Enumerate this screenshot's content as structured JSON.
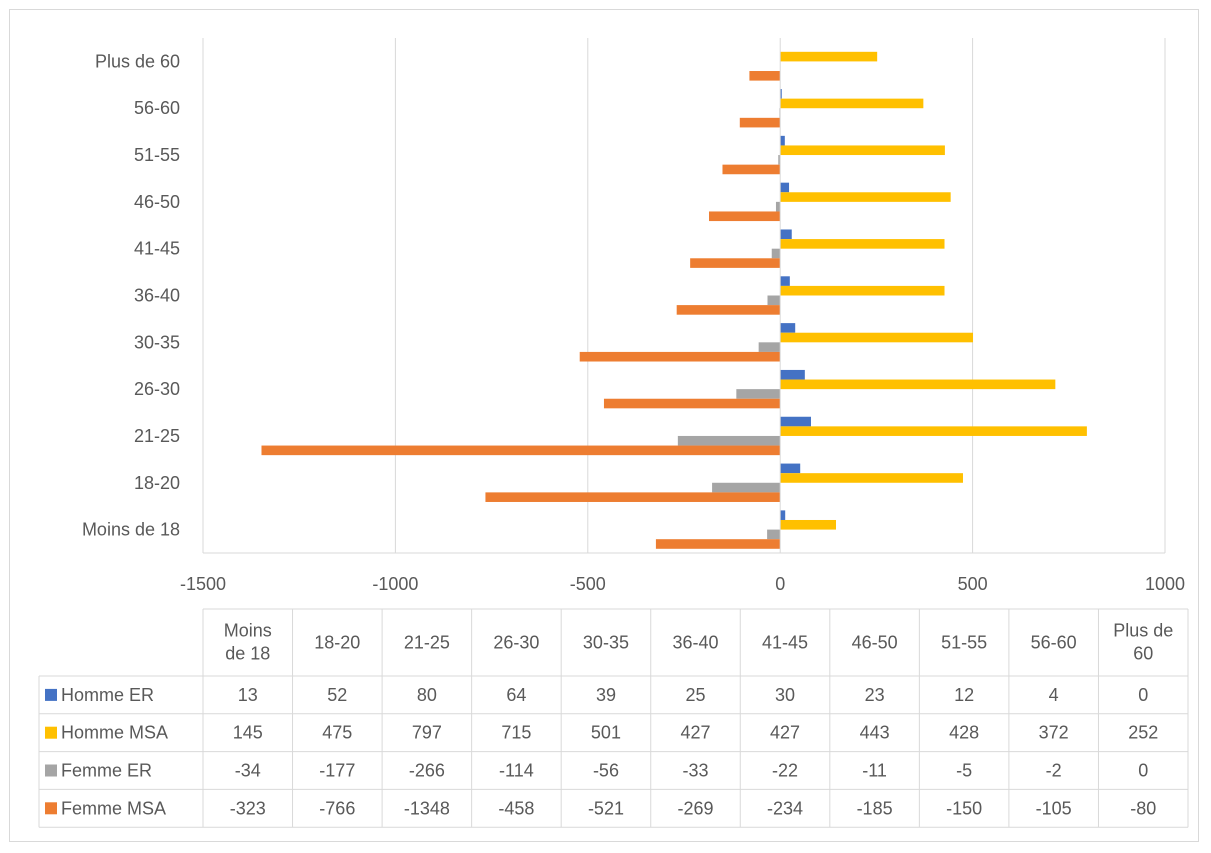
{
  "chart_data": {
    "type": "bar",
    "orientation": "horizontal",
    "title": "",
    "xlabel": "",
    "ylabel": "",
    "xlim": [
      -1500,
      1000
    ],
    "xticks": [
      "-1500",
      "-1000",
      "-500",
      "0",
      "500",
      "1000"
    ],
    "xtick_values": [
      -1500,
      -1000,
      -500,
      0,
      500,
      1000
    ],
    "grid": true,
    "legend_placement": "data-table",
    "categories": [
      "Moins de 18",
      "18-20",
      "21-25",
      "26-30",
      "30-35",
      "36-40",
      "41-45",
      "46-50",
      "51-55",
      "56-60",
      "Plus de 60"
    ],
    "series": [
      {
        "name": "Homme ER",
        "color": "#4472c4",
        "values": [
          13,
          52,
          80,
          64,
          39,
          25,
          30,
          23,
          12,
          4,
          0
        ]
      },
      {
        "name": "Homme MSA",
        "color": "#ffc000",
        "values": [
          145,
          475,
          797,
          715,
          501,
          427,
          427,
          443,
          428,
          372,
          252
        ]
      },
      {
        "name": "Femme ER",
        "color": "#a5a5a5",
        "values": [
          -34,
          -177,
          -266,
          -114,
          -56,
          -33,
          -22,
          -11,
          -5,
          -2,
          0
        ]
      },
      {
        "name": "Femme MSA",
        "color": "#ed7d31",
        "values": [
          -323,
          -766,
          -1348,
          -458,
          -521,
          -269,
          -234,
          -185,
          -150,
          -105,
          -80
        ]
      }
    ],
    "table_headers": [
      "Moins de 18",
      "18-20",
      "21-25",
      "26-30",
      "30-35",
      "36-40",
      "41-45",
      "46-50",
      "51-55",
      "56-60",
      "Plus de 60"
    ],
    "table_rows": [
      {
        "label": "Homme ER",
        "color": "#4472c4",
        "cells": [
          "13",
          "52",
          "80",
          "64",
          "39",
          "25",
          "30",
          "23",
          "12",
          "4",
          "0"
        ]
      },
      {
        "label": "Homme MSA",
        "color": "#ffc000",
        "cells": [
          "145",
          "475",
          "797",
          "715",
          "501",
          "427",
          "427",
          "443",
          "428",
          "372",
          "252"
        ]
      },
      {
        "label": "Femme ER",
        "color": "#a5a5a5",
        "cells": [
          "-34",
          "-177",
          "-266",
          "-114",
          "-56",
          "-33",
          "-22",
          "-11",
          "-5",
          "-2",
          "0"
        ]
      },
      {
        "label": "Femme MSA",
        "color": "#ed7d31",
        "cells": [
          "-323",
          "-766",
          "-1348",
          "-458",
          "-521",
          "-269",
          "-234",
          "-185",
          "-150",
          "-105",
          "-80"
        ]
      }
    ]
  }
}
